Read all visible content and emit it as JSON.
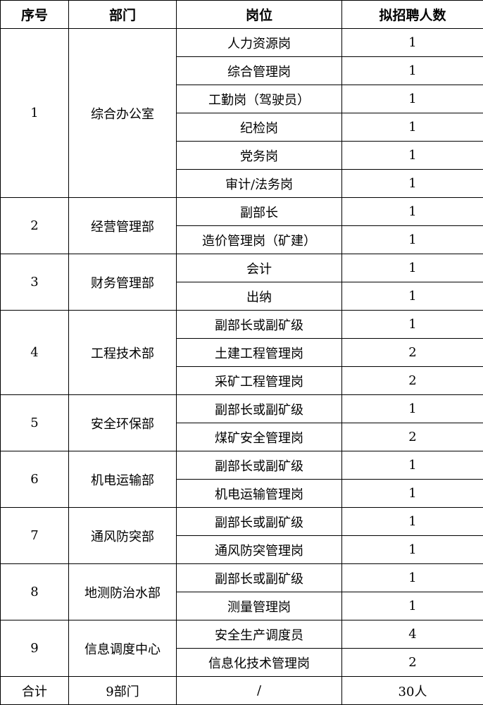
{
  "header": [
    "序号",
    "部门",
    "岗位",
    "拟招聘人数"
  ],
  "departments": [
    {
      "no": "1",
      "name": "综合办公室",
      "positions": [
        {
          "title": "人力资源岗",
          "count": "1"
        },
        {
          "title": "综合管理岗",
          "count": "1"
        },
        {
          "title": "工勤岗（驾驶员）",
          "count": "1"
        },
        {
          "title": "纪检岗",
          "count": "1"
        },
        {
          "title": "党务岗",
          "count": "1"
        },
        {
          "title": "审计/法务岗",
          "count": "1"
        }
      ]
    },
    {
      "no": "2",
      "name": "经营管理部",
      "positions": [
        {
          "title": "副部长",
          "count": "1"
        },
        {
          "title": "造价管理岗（矿建）",
          "count": "1"
        }
      ]
    },
    {
      "no": "3",
      "name": "财务管理部",
      "positions": [
        {
          "title": "会计",
          "count": "1"
        },
        {
          "title": "出纳",
          "count": "1"
        }
      ]
    },
    {
      "no": "4",
      "name": "工程技术部",
      "positions": [
        {
          "title": "副部长或副矿级",
          "count": "1"
        },
        {
          "title": "土建工程管理岗",
          "count": "2"
        },
        {
          "title": "采矿工程管理岗",
          "count": "2"
        }
      ]
    },
    {
      "no": "5",
      "name": "安全环保部",
      "positions": [
        {
          "title": "副部长或副矿级",
          "count": "1"
        },
        {
          "title": "煤矿安全管理岗",
          "count": "2"
        }
      ]
    },
    {
      "no": "6",
      "name": "机电运输部",
      "positions": [
        {
          "title": "副部长或副矿级",
          "count": "1"
        },
        {
          "title": "机电运输管理岗",
          "count": "1"
        }
      ]
    },
    {
      "no": "7",
      "name": "通风防突部",
      "positions": [
        {
          "title": "副部长或副矿级",
          "count": "1"
        },
        {
          "title": "通风防突管理岗",
          "count": "1"
        }
      ]
    },
    {
      "no": "8",
      "name": "地测防治水部",
      "positions": [
        {
          "title": "副部长或副矿级",
          "count": "1"
        },
        {
          "title": "测量管理岗",
          "count": "1"
        }
      ]
    },
    {
      "no": "9",
      "name": "信息调度中心",
      "positions": [
        {
          "title": "安全生产调度员",
          "count": "4"
        },
        {
          "title": "信息化技术管理岗",
          "count": "2"
        }
      ]
    }
  ],
  "total": {
    "label": "合计",
    "departments": "9部门",
    "positions": "/",
    "count": "30人"
  }
}
